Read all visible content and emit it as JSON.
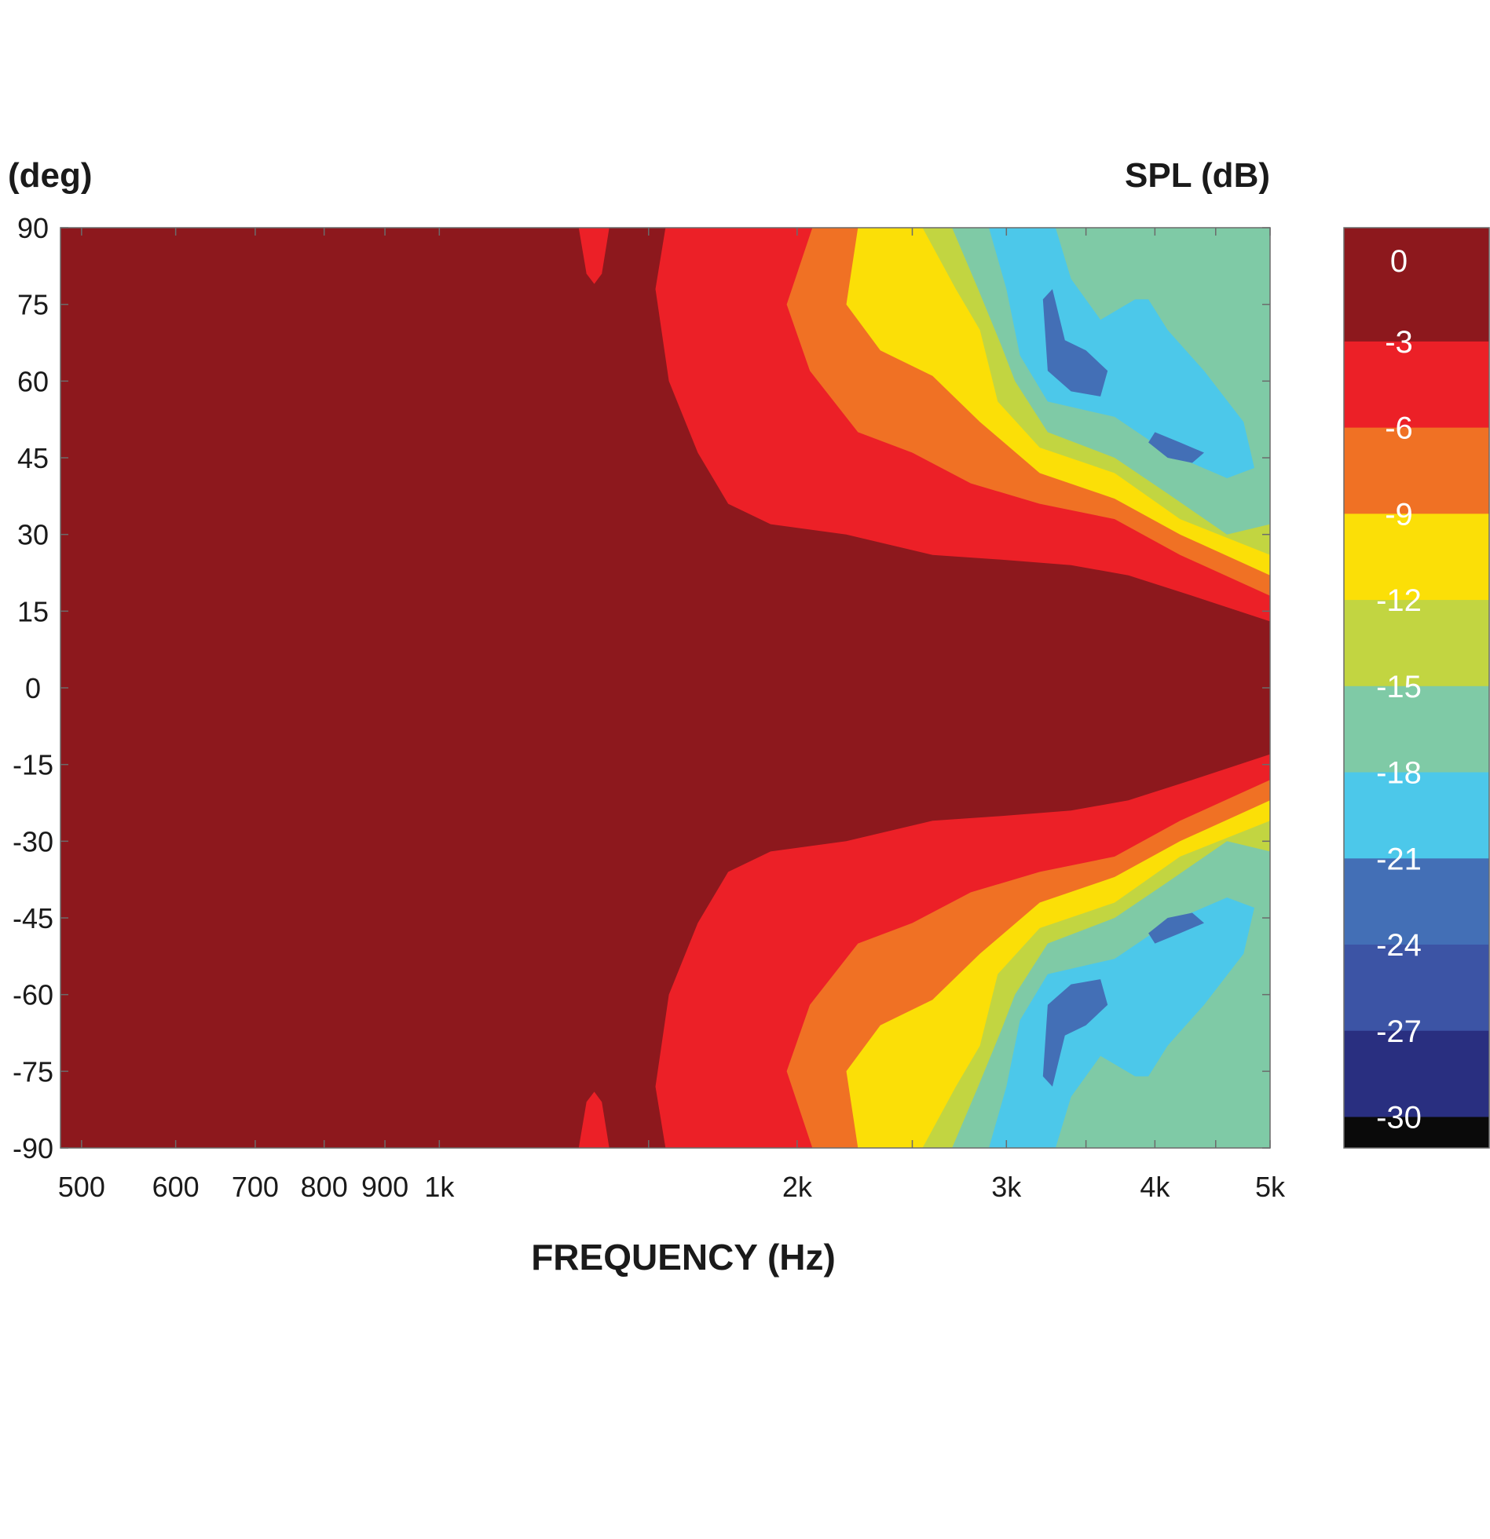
{
  "chart_data": {
    "type": "heatmap",
    "subtype": "contour",
    "title": "",
    "xlabel": "FREQUENCY (Hz)",
    "ylabel": "(deg)",
    "colorbar_label": "SPL (dB)",
    "x_scale": "log",
    "xlim": [
      480,
      5000
    ],
    "ylim": [
      -90,
      90
    ],
    "x_ticks": [
      {
        "value": 500,
        "label": "500"
      },
      {
        "value": 600,
        "label": "600"
      },
      {
        "value": 700,
        "label": "700"
      },
      {
        "value": 800,
        "label": "800"
      },
      {
        "value": 900,
        "label": "900"
      },
      {
        "value": 1000,
        "label": "1k"
      },
      {
        "value": 2000,
        "label": "2k"
      },
      {
        "value": 3000,
        "label": "3k"
      },
      {
        "value": 4000,
        "label": "4k"
      },
      {
        "value": 5000,
        "label": "5k"
      }
    ],
    "y_ticks": [
      90,
      75,
      60,
      45,
      30,
      15,
      0,
      -15,
      -30,
      -45,
      -60,
      -75,
      -90
    ],
    "colorbar": {
      "levels": [
        {
          "label": "0",
          "color": "#8d181d"
        },
        {
          "label": "-3",
          "color": "#ec2027"
        },
        {
          "label": "-6",
          "color": "#f07124"
        },
        {
          "label": "-9",
          "color": "#fbdf07"
        },
        {
          "label": "-12",
          "color": "#c2d541"
        },
        {
          "label": "-15",
          "color": "#7fcaa6"
        },
        {
          "label": "-18",
          "color": "#4cc8ea"
        },
        {
          "label": "-21",
          "color": "#436fb6"
        },
        {
          "label": "-24",
          "color": "#3c54a5"
        },
        {
          "label": "-27",
          "color": "#292f80"
        },
        {
          "label": "-30",
          "color": "#0a0a0a"
        }
      ]
    },
    "contours_upper": [
      {
        "level": "-3",
        "points": [
          [
            1310,
            90
          ],
          [
            1330,
            81
          ],
          [
            1350,
            79
          ],
          [
            1370,
            81
          ],
          [
            1390,
            90
          ]
        ]
      },
      {
        "level": "-3",
        "points": [
          [
            1550,
            90
          ],
          [
            1520,
            78
          ],
          [
            1560,
            60
          ],
          [
            1650,
            46
          ],
          [
            1750,
            36
          ],
          [
            1900,
            32
          ],
          [
            2200,
            30
          ],
          [
            2600,
            26
          ],
          [
            3000,
            25
          ],
          [
            3400,
            24
          ],
          [
            3800,
            22
          ],
          [
            4300,
            18
          ],
          [
            5000,
            13
          ],
          [
            5000,
            90
          ]
        ]
      },
      {
        "level": "-6",
        "points": [
          [
            2060,
            90
          ],
          [
            1960,
            75
          ],
          [
            2050,
            62
          ],
          [
            2250,
            50
          ],
          [
            2500,
            46
          ],
          [
            2800,
            40
          ],
          [
            3200,
            36
          ],
          [
            3700,
            33
          ],
          [
            4200,
            26
          ],
          [
            5000,
            18
          ],
          [
            5000,
            90
          ]
        ]
      },
      {
        "level": "-9",
        "points": [
          [
            2250,
            90
          ],
          [
            2200,
            75
          ],
          [
            2350,
            66
          ],
          [
            2600,
            61
          ],
          [
            2850,
            52
          ],
          [
            3200,
            42
          ],
          [
            3700,
            37
          ],
          [
            4200,
            30
          ],
          [
            5000,
            22
          ],
          [
            5000,
            90
          ]
        ]
      },
      {
        "level": "-12",
        "points": [
          [
            2550,
            90
          ],
          [
            2720,
            78
          ],
          [
            2850,
            70
          ],
          [
            2950,
            56
          ],
          [
            3200,
            47
          ],
          [
            3700,
            42
          ],
          [
            4200,
            33
          ],
          [
            5000,
            26
          ],
          [
            5000,
            90
          ]
        ]
      },
      {
        "level": "-15",
        "points": [
          [
            2700,
            90
          ],
          [
            2840,
            78
          ],
          [
            2970,
            67
          ],
          [
            3050,
            60
          ],
          [
            3250,
            50
          ],
          [
            3700,
            45
          ],
          [
            4100,
            38
          ],
          [
            4600,
            30
          ],
          [
            5000,
            32
          ],
          [
            5000,
            90
          ]
        ]
      },
      {
        "level": "-18",
        "points": [
          [
            2900,
            90
          ],
          [
            3000,
            78
          ],
          [
            3080,
            65
          ],
          [
            3250,
            56
          ],
          [
            3700,
            53
          ],
          [
            4100,
            46
          ],
          [
            4600,
            41
          ],
          [
            4850,
            43
          ],
          [
            4750,
            52
          ],
          [
            4400,
            62
          ],
          [
            4100,
            70
          ],
          [
            3950,
            76
          ],
          [
            3850,
            76
          ],
          [
            3600,
            72
          ],
          [
            3400,
            80
          ],
          [
            3300,
            90
          ]
        ]
      },
      {
        "level": "-21",
        "points": [
          [
            3220,
            76
          ],
          [
            3250,
            62
          ],
          [
            3400,
            58
          ],
          [
            3600,
            57
          ],
          [
            3650,
            62
          ],
          [
            3500,
            66
          ],
          [
            3360,
            68
          ],
          [
            3280,
            78
          ]
        ]
      },
      {
        "level": "-21",
        "points": [
          [
            3950,
            48
          ],
          [
            4100,
            45
          ],
          [
            4300,
            44
          ],
          [
            4400,
            46
          ],
          [
            4200,
            48
          ],
          [
            4000,
            50
          ]
        ]
      }
    ],
    "contours_lower_note": "Lower half is the mirror image of the upper half (symmetric about 0 deg)."
  }
}
